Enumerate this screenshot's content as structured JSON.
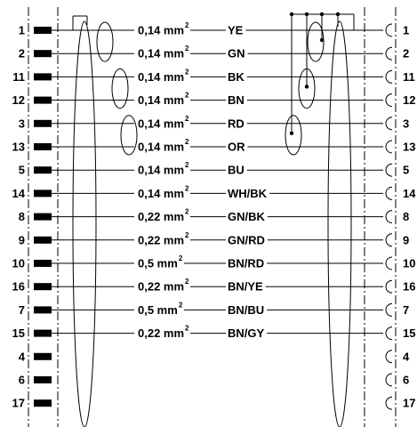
{
  "wires": [
    {
      "left_pin": "1",
      "size": "0,14 mm",
      "color": "YE",
      "right_pin": "1"
    },
    {
      "left_pin": "2",
      "size": "0,14 mm",
      "color": "GN",
      "right_pin": "2"
    },
    {
      "left_pin": "11",
      "size": "0,14 mm",
      "color": "BK",
      "right_pin": "11"
    },
    {
      "left_pin": "12",
      "size": "0,14 mm",
      "color": "BN",
      "right_pin": "12"
    },
    {
      "left_pin": "3",
      "size": "0,14 mm",
      "color": "RD",
      "right_pin": "3"
    },
    {
      "left_pin": "13",
      "size": "0,14 mm",
      "color": "OR",
      "right_pin": "13"
    },
    {
      "left_pin": "5",
      "size": "0,14 mm",
      "color": "BU",
      "right_pin": "5"
    },
    {
      "left_pin": "14",
      "size": "0,14 mm",
      "color": "WH/BK",
      "right_pin": "14"
    },
    {
      "left_pin": "8",
      "size": "0,22 mm",
      "color": "GN/BK",
      "right_pin": "8"
    },
    {
      "left_pin": "9",
      "size": "0,22 mm",
      "color": "GN/RD",
      "right_pin": "9"
    },
    {
      "left_pin": "10",
      "size": "0,5 mm",
      "color": "BN/RD",
      "right_pin": "10"
    },
    {
      "left_pin": "16",
      "size": "0,22 mm",
      "color": "BN/YE",
      "right_pin": "16"
    },
    {
      "left_pin": "7",
      "size": "0,5 mm",
      "color": "BN/BU",
      "right_pin": "7"
    },
    {
      "left_pin": "15",
      "size": "0,22 mm",
      "color": "BN/GY",
      "right_pin": "15"
    }
  ],
  "unused_pins": [
    {
      "left_pin": "4",
      "right_pin": "4"
    },
    {
      "left_pin": "6",
      "right_pin": "6"
    },
    {
      "left_pin": "17",
      "right_pin": "17"
    }
  ],
  "size_exponent": "2",
  "twisted_pairs_left": [
    [
      0,
      1
    ],
    [
      2,
      3
    ],
    [
      4,
      5
    ]
  ],
  "twisted_pairs_right": [
    [
      0,
      1
    ],
    [
      2,
      3
    ],
    [
      4,
      5
    ]
  ]
}
